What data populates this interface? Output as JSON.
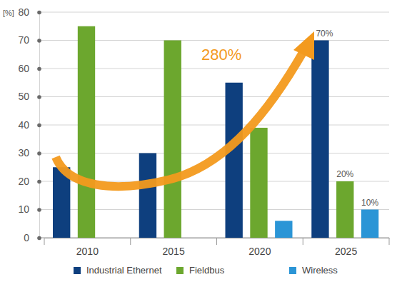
{
  "chart_data": {
    "type": "bar",
    "y_label": "[%]",
    "categories": [
      "2010",
      "2015",
      "2020",
      "2025"
    ],
    "series": [
      {
        "name": "Industrial Ethernet",
        "color": "#0e3f7e",
        "values": [
          25,
          30,
          55,
          70
        ],
        "value_labels": [
          null,
          null,
          null,
          "70%"
        ]
      },
      {
        "name": "Fieldbus",
        "color": "#6ca72e",
        "values": [
          75,
          70,
          39,
          20
        ],
        "value_labels": [
          null,
          null,
          null,
          "20%"
        ]
      },
      {
        "name": "Wireless",
        "color": "#2b95d6",
        "values": [
          null,
          null,
          6,
          10
        ],
        "value_labels": [
          null,
          null,
          null,
          "10%"
        ]
      }
    ],
    "annotations": [
      {
        "text": "280%"
      }
    ],
    "ylim": [
      0,
      80
    ],
    "yticks": [
      0,
      10,
      20,
      30,
      40,
      50,
      60,
      70,
      80
    ],
    "grid": true,
    "legend": "bottom",
    "data_labels": true
  }
}
